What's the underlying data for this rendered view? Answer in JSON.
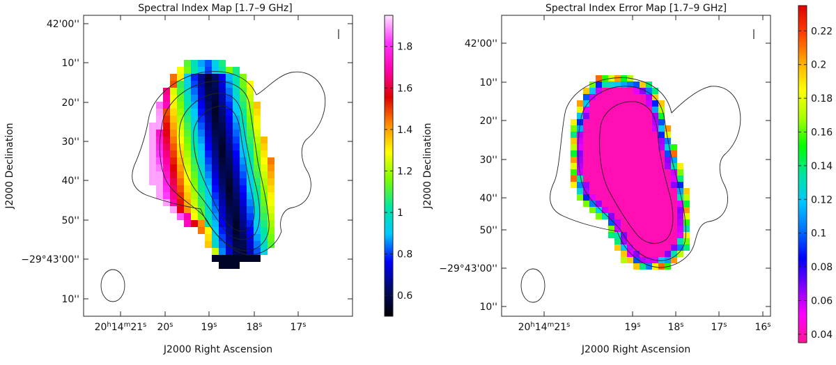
{
  "chart_data": [
    {
      "type": "heatmap",
      "title": "Spectral Index Map [1.7–9 GHz]",
      "xlabel": "J2000 Right Ascension",
      "ylabel": "J2000 Declination",
      "x_ticks": [
        "20h14m21s",
        "20s",
        "19s",
        "18s",
        "17s"
      ],
      "x_tick_parts": [
        [
          {
            "t": "20"
          },
          {
            "t": "h",
            "sup": true
          },
          {
            "t": "14"
          },
          {
            "t": "m",
            "sup": true
          },
          {
            "t": "21"
          },
          {
            "t": "s",
            "sup": true
          }
        ],
        [
          {
            "t": "20"
          },
          {
            "t": "s",
            "sup": true
          }
        ],
        [
          {
            "t": "19"
          },
          {
            "t": "s",
            "sup": true
          }
        ],
        [
          {
            "t": "18"
          },
          {
            "t": "s",
            "sup": true
          }
        ],
        [
          {
            "t": "17"
          },
          {
            "t": "s",
            "sup": true
          }
        ]
      ],
      "y_ticks": [
        "42'00''",
        "10''",
        "20''",
        "30''",
        "40''",
        "50''",
        "−29°43'00''",
        "10''"
      ],
      "colorbar": {
        "label": "",
        "ticks": [
          "0.6",
          "0.8",
          "1",
          "1.2",
          "1.4",
          "1.6",
          "1.8"
        ],
        "range": [
          0.5,
          1.95
        ],
        "colormap": [
          "#000000",
          "#000a66",
          "#0000ff",
          "#00c8ff",
          "#00e8a0",
          "#7cfc00",
          "#ffff00",
          "#ff8c00",
          "#e00000",
          "#ff00aa",
          "#ff33ff",
          "#ffe6ff"
        ]
      },
      "pixel_value_range": [
        0.55,
        1.9
      ],
      "beam": "ellipse",
      "marker": "|"
    },
    {
      "type": "heatmap",
      "title": "Spectral Index Error Map [1.7–9 GHz]",
      "xlabel": "J2000 Right Ascension",
      "ylabel": "J2000 Declination",
      "x_ticks": [
        "20h14m21s",
        "19s",
        "18s",
        "17s",
        "16s"
      ],
      "x_tick_parts": [
        [
          {
            "t": "20"
          },
          {
            "t": "h",
            "sup": true
          },
          {
            "t": "14"
          },
          {
            "t": "m",
            "sup": true
          },
          {
            "t": "21"
          },
          {
            "t": "s",
            "sup": true
          }
        ],
        [
          {
            "t": "19"
          },
          {
            "t": "s",
            "sup": true
          }
        ],
        [
          {
            "t": "18"
          },
          {
            "t": "s",
            "sup": true
          }
        ],
        [
          {
            "t": "17"
          },
          {
            "t": "s",
            "sup": true
          }
        ],
        [
          {
            "t": "16"
          },
          {
            "t": "s",
            "sup": true
          }
        ]
      ],
      "y_ticks": [
        "42'00''",
        "10''",
        "20''",
        "30''",
        "40''",
        "50''",
        "−29°43'00''",
        "10''"
      ],
      "colorbar": {
        "label": "",
        "ticks": [
          "0.04",
          "0.06",
          "0.08",
          "0.1",
          "0.12",
          "0.14",
          "0.16",
          "0.18",
          "0.2",
          "0.22"
        ],
        "range": [
          0.035,
          0.235
        ],
        "colormap": [
          "#ff1493",
          "#ff00ff",
          "#8000ff",
          "#0000ff",
          "#0070ff",
          "#00c8ff",
          "#00e6a0",
          "#00ff00",
          "#aaff00",
          "#ffff00",
          "#ffaa00",
          "#ff4000",
          "#e00000"
        ]
      },
      "pixel_value_range": [
        0.04,
        0.22
      ],
      "beam": "ellipse",
      "marker": "|"
    }
  ]
}
